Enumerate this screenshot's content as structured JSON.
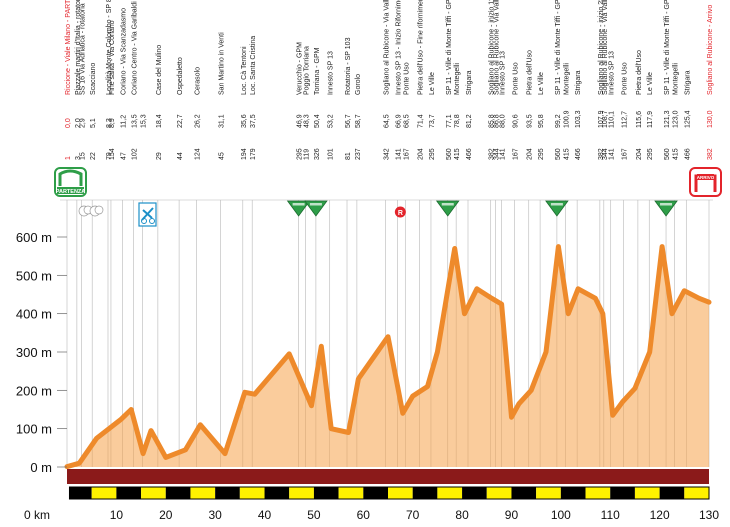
{
  "chart_data": {
    "type": "area",
    "title": "",
    "xlabel": "km",
    "ylabel": "",
    "xlim": [
      0,
      130
    ],
    "ylim": [
      0,
      700
    ],
    "colors": {
      "profile_line": "#ee8a2b",
      "profile_fill": "#f5a24a",
      "base_band": "#8b1a1a",
      "scale_yellow": "#fff200",
      "scale_black": "#000000",
      "start_badge": "#2e9e48",
      "finish_badge": "#e3242b",
      "gpm_marker": "#2e9e48",
      "refuel_marker": "#e3242b",
      "label_red": "#e3242b"
    },
    "y_ticks": [
      {
        "value": 0,
        "label": "0 m"
      },
      {
        "value": 100,
        "label": "100 m"
      },
      {
        "value": 200,
        "label": "200 m"
      },
      {
        "value": 300,
        "label": "300 m"
      },
      {
        "value": 400,
        "label": "400 m"
      },
      {
        "value": 500,
        "label": "500 m"
      },
      {
        "value": 600,
        "label": "600 m"
      }
    ],
    "x_ticks": [
      {
        "value": 0,
        "label": "0 km"
      },
      {
        "value": 10,
        "label": "10"
      },
      {
        "value": 20,
        "label": "20"
      },
      {
        "value": 30,
        "label": "30"
      },
      {
        "value": 40,
        "label": "40"
      },
      {
        "value": 50,
        "label": "50"
      },
      {
        "value": 60,
        "label": "60"
      },
      {
        "value": 70,
        "label": "70"
      },
      {
        "value": 80,
        "label": "80"
      },
      {
        "value": 90,
        "label": "90"
      },
      {
        "value": 100,
        "label": "100"
      },
      {
        "value": 110,
        "label": "110"
      },
      {
        "value": 120,
        "label": "120"
      },
      {
        "value": 130,
        "label": "130"
      }
    ],
    "profile": [
      {
        "km": 0,
        "alt": 1
      },
      {
        "km": 2.5,
        "alt": 10
      },
      {
        "km": 6,
        "alt": 75
      },
      {
        "km": 11,
        "alt": 125
      },
      {
        "km": 13,
        "alt": 150
      },
      {
        "km": 15.4,
        "alt": 35
      },
      {
        "km": 17,
        "alt": 95
      },
      {
        "km": 20,
        "alt": 25
      },
      {
        "km": 24,
        "alt": 45
      },
      {
        "km": 27,
        "alt": 110
      },
      {
        "km": 32,
        "alt": 35
      },
      {
        "km": 36,
        "alt": 195
      },
      {
        "km": 38,
        "alt": 190
      },
      {
        "km": 45,
        "alt": 295
      },
      {
        "km": 49.5,
        "alt": 160
      },
      {
        "km": 51.5,
        "alt": 315
      },
      {
        "km": 53.5,
        "alt": 100
      },
      {
        "km": 57,
        "alt": 90
      },
      {
        "km": 59,
        "alt": 230
      },
      {
        "km": 65,
        "alt": 340
      },
      {
        "km": 68,
        "alt": 140
      },
      {
        "km": 70,
        "alt": 185
      },
      {
        "km": 73,
        "alt": 210
      },
      {
        "km": 75,
        "alt": 300
      },
      {
        "km": 78.5,
        "alt": 570
      },
      {
        "km": 80.5,
        "alt": 400
      },
      {
        "km": 83,
        "alt": 465
      },
      {
        "km": 86,
        "alt": 440
      },
      {
        "km": 88,
        "alt": 425
      },
      {
        "km": 90,
        "alt": 130
      },
      {
        "km": 91.5,
        "alt": 165
      },
      {
        "km": 94,
        "alt": 200
      },
      {
        "km": 97,
        "alt": 300
      },
      {
        "km": 99.5,
        "alt": 575
      },
      {
        "km": 101.5,
        "alt": 400
      },
      {
        "km": 103.5,
        "alt": 465
      },
      {
        "km": 107,
        "alt": 440
      },
      {
        "km": 108.5,
        "alt": 400
      },
      {
        "km": 110.5,
        "alt": 135
      },
      {
        "km": 112.5,
        "alt": 170
      },
      {
        "km": 115,
        "alt": 205
      },
      {
        "km": 118,
        "alt": 300
      },
      {
        "km": 120.5,
        "alt": 575
      },
      {
        "km": 122.5,
        "alt": 400
      },
      {
        "km": 125,
        "alt": 460
      },
      {
        "km": 128,
        "alt": 440
      },
      {
        "km": 130,
        "alt": 430
      }
    ],
    "scale_bar_segment_km": 10,
    "waypoints": [
      {
        "alt": "1",
        "km": "0,0",
        "name": "Riccione - Viale Milano - PARTENZA",
        "red": true,
        "gpm": false
      },
      {
        "alt": "3",
        "km": "2,0",
        "name": "Piazzale martiri d'Italia - rotatoria",
        "red": false,
        "gpm": false
      },
      {
        "alt": "15",
        "km": "2,9",
        "name": "SS 16 Via Adriatica - rotatoria",
        "red": false,
        "gpm": false
      },
      {
        "alt": "22",
        "km": "5,1",
        "name": "Scacciano",
        "red": false,
        "gpm": false
      },
      {
        "alt": "79",
        "km": "8,3",
        "name": "Località Monte Colombo - SP 82",
        "red": false,
        "gpm": false
      },
      {
        "alt": "154",
        "km": "8,9",
        "name": "Fine salita - Via Coriano",
        "red": false,
        "gpm": false
      },
      {
        "alt": "47",
        "km": "11,2",
        "name": "Coriano - Via Scanzadasmo",
        "red": false,
        "gpm": false
      },
      {
        "alt": "102",
        "km": "13,5",
        "name": "Coriano Centro - Via Garibaldi",
        "red": false,
        "gpm": false
      },
      {
        "alt": "",
        "km": "15,3",
        "name": "",
        "red": false,
        "gpm": false
      },
      {
        "alt": "29",
        "km": "18,4",
        "name": "Case del Mulino",
        "red": false,
        "gpm": false
      },
      {
        "alt": "44",
        "km": "22,7",
        "name": "Ospedaletto",
        "red": false,
        "gpm": false
      },
      {
        "alt": "124",
        "km": "26,2",
        "name": "Cerasolo",
        "red": false,
        "gpm": false
      },
      {
        "alt": "45",
        "km": "31,1",
        "name": "San Martino in Venti",
        "red": false,
        "gpm": false
      },
      {
        "alt": "194",
        "km": "35,6",
        "name": "Loc. Cà Tentoni",
        "red": false,
        "gpm": false
      },
      {
        "alt": "179",
        "km": "37,5",
        "name": "Loc. Santa Cristina",
        "red": false,
        "gpm": false
      },
      {
        "alt": "295",
        "km": "46,9",
        "name": "Verucchio - GPM",
        "red": false,
        "gpm": true
      },
      {
        "alt": "119",
        "km": "48,3",
        "name": "Poggio Torriana",
        "red": false,
        "gpm": false
      },
      {
        "alt": "326",
        "km": "50,4",
        "name": "Torriana - GPM",
        "red": false,
        "gpm": true
      },
      {
        "alt": "101",
        "km": "53,2",
        "name": "Innesto SP 13",
        "red": false,
        "gpm": false
      },
      {
        "alt": "81",
        "km": "56,7",
        "name": "Rotatoria - SP 103",
        "red": false,
        "gpm": false
      },
      {
        "alt": "237",
        "km": "58,7",
        "name": "Gorolo",
        "red": false,
        "gpm": false
      },
      {
        "alt": "342",
        "km": "64,5",
        "name": "Sogliano al Rubicone - Via Valle",
        "red": false,
        "gpm": false
      },
      {
        "alt": "141",
        "km": "66,9",
        "name": "Innesto SP 13 - Inizio Rifornimento",
        "red": false,
        "gpm": false
      },
      {
        "alt": "167",
        "km": "68,5",
        "name": "Ponte Uso",
        "red": false,
        "gpm": false
      },
      {
        "alt": "204",
        "km": "71,4",
        "name": "Pietra dell'Uso - Fine rifornimento",
        "red": false,
        "gpm": false
      },
      {
        "alt": "295",
        "km": "73,7",
        "name": "Le Ville",
        "red": false,
        "gpm": false
      },
      {
        "alt": "560",
        "km": "77,1",
        "name": "SP 11 - Ville di Monte Tiffi - GPM",
        "red": false,
        "gpm": true
      },
      {
        "alt": "415",
        "km": "78,8",
        "name": "Montegelli",
        "red": false,
        "gpm": false
      },
      {
        "alt": "466",
        "km": "81,2",
        "name": "Strigara",
        "red": false,
        "gpm": false
      },
      {
        "alt": "382",
        "km": "85,8",
        "name": "Sogliano al Rubicone - inizio 1° giro",
        "red": false,
        "gpm": false
      },
      {
        "alt": "344",
        "km": "86,8",
        "name": "Sogliano al Rubicone - Via Valle",
        "red": false,
        "gpm": false
      },
      {
        "alt": "141",
        "km": "88,0",
        "name": "Innesto SP 13",
        "red": false,
        "gpm": false
      },
      {
        "alt": "167",
        "km": "90,6",
        "name": "Ponte Uso",
        "red": false,
        "gpm": false
      },
      {
        "alt": "204",
        "km": "93,5",
        "name": "Pietra dell'Uso",
        "red": false,
        "gpm": false
      },
      {
        "alt": "295",
        "km": "95,8",
        "name": "Le Ville",
        "red": false,
        "gpm": false
      },
      {
        "alt": "560",
        "km": "99,2",
        "name": "SP 11 - Ville di Monte Tiffi - GPM",
        "red": false,
        "gpm": true
      },
      {
        "alt": "415",
        "km": "100,9",
        "name": "Montegelli",
        "red": false,
        "gpm": false
      },
      {
        "alt": "466",
        "km": "103,3",
        "name": "Strigara",
        "red": false,
        "gpm": false
      },
      {
        "alt": "382",
        "km": "107,9",
        "name": "Sogliano al Rubicone - inizio 2° giro",
        "red": false,
        "gpm": false
      },
      {
        "alt": "344",
        "km": "108,7",
        "name": "Sogliano al Rubicone - Via Valle",
        "red": false,
        "gpm": false
      },
      {
        "alt": "141",
        "km": "110,1",
        "name": "Innesto SP 13",
        "red": false,
        "gpm": false
      },
      {
        "alt": "167",
        "km": "112,7",
        "name": "Ponte Uso",
        "red": false,
        "gpm": false
      },
      {
        "alt": "204",
        "km": "115,6",
        "name": "Pietra dell'Uso",
        "red": false,
        "gpm": false
      },
      {
        "alt": "295",
        "km": "117,9",
        "name": "Le Ville",
        "red": false,
        "gpm": false
      },
      {
        "alt": "560",
        "km": "121,3",
        "name": "SP 11 - Ville di Monte Tiffi - GPM",
        "red": false,
        "gpm": true
      },
      {
        "alt": "415",
        "km": "123,0",
        "name": "Montegelli",
        "red": false,
        "gpm": false
      },
      {
        "alt": "466",
        "km": "125,4",
        "name": "Strigara",
        "red": false,
        "gpm": false
      },
      {
        "alt": "382",
        "km": "130,0",
        "name": "Sogliano al Rubicone - Arrivo",
        "red": true,
        "gpm": false
      }
    ],
    "gpm_markers": [
      {
        "km": 46.9,
        "icon": "gpm-triangle-icon"
      },
      {
        "km": 50.4,
        "icon": "gpm-triangle-icon"
      },
      {
        "km": 77.1,
        "icon": "gpm-triangle-icon"
      },
      {
        "km": 99.2,
        "icon": "gpm-triangle-icon"
      },
      {
        "km": 121.3,
        "icon": "gpm-triangle-icon"
      }
    ],
    "refuel_marker": {
      "km": 67.5,
      "label": "R"
    },
    "start_badge": {
      "label": "PARTENZA",
      "icon": "start-flag-icon"
    },
    "finish_badge": {
      "label": "ARRIVO",
      "icon": "finish-arch-icon"
    },
    "extra_icons": [
      "cloud-icon",
      "cloud-icon",
      "cyclist-sign-icon"
    ]
  }
}
